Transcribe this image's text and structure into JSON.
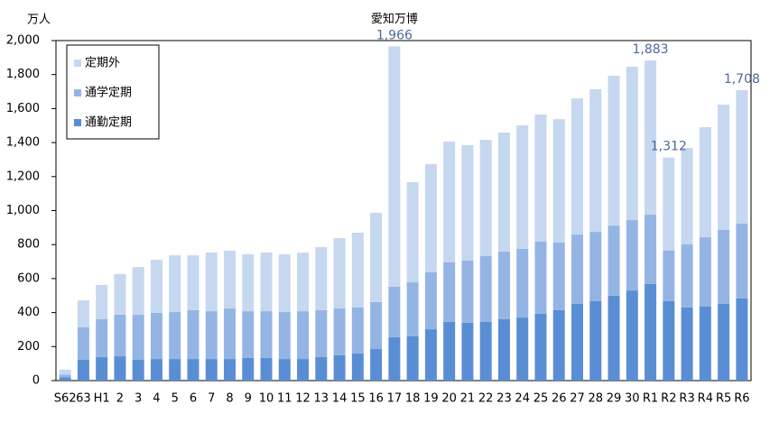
{
  "chart_data": {
    "type": "stacked_bar",
    "y_label": "万人",
    "categories": [
      "S62",
      "63",
      "H1",
      "2",
      "3",
      "4",
      "5",
      "6",
      "7",
      "8",
      "9",
      "10",
      "11",
      "12",
      "13",
      "14",
      "15",
      "16",
      "17",
      "18",
      "19",
      "20",
      "21",
      "22",
      "23",
      "24",
      "25",
      "26",
      "27",
      "28",
      "29",
      "30",
      "R1",
      "R2",
      "R3",
      "R4",
      "R5",
      "R6"
    ],
    "series": [
      {
        "name": "通勤定期",
        "color": "#5a8ed4",
        "values": [
          20,
          122,
          138,
          143,
          122,
          127,
          127,
          127,
          127,
          127,
          133,
          133,
          127,
          127,
          138,
          149,
          159,
          186,
          255,
          260,
          302,
          345,
          340,
          345,
          361,
          371,
          393,
          414,
          451,
          467,
          499,
          530,
          568,
          467,
          430,
          435,
          451,
          483
        ]
      },
      {
        "name": "通学定期",
        "color": "#94b5e4",
        "values": [
          15,
          191,
          223,
          244,
          265,
          271,
          276,
          287,
          281,
          297,
          275,
          275,
          276,
          281,
          276,
          275,
          271,
          276,
          297,
          318,
          335,
          350,
          366,
          387,
          398,
          404,
          424,
          398,
          408,
          408,
          413,
          414,
          408,
          297,
          371,
          408,
          435,
          440
        ]
      },
      {
        "name": "定期外",
        "color": "#c6d7f0",
        "values": [
          29,
          159,
          201,
          239,
          281,
          313,
          334,
          323,
          345,
          340,
          335,
          345,
          340,
          345,
          371,
          414,
          440,
          525,
          1414,
          589,
          636,
          711,
          679,
          684,
          700,
          726,
          748,
          726,
          801,
          839,
          881,
          902,
          907,
          548,
          568,
          648,
          737,
          785
        ]
      }
    ],
    "ylim": [
      0,
      2000
    ],
    "yticks": [
      0,
      200,
      400,
      600,
      800,
      {
        "value": 1000,
        "label": "1,000"
      },
      {
        "value": 1200,
        "label": "1,200"
      },
      {
        "value": 1400,
        "label": "1,400"
      },
      {
        "value": 1600,
        "label": "1,600"
      },
      {
        "value": 1800,
        "label": "1,800"
      },
      {
        "value": 2000,
        "label": "2,000"
      }
    ],
    "annotations": [
      {
        "category": "17",
        "note": "愛知万博",
        "text": "1,966",
        "value": 1966
      },
      {
        "category": "R1",
        "text": "1,883",
        "value": 1883
      },
      {
        "category": "R2",
        "text": "1,312",
        "value": 1312
      },
      {
        "category": "R6",
        "text": "1,708",
        "value": 1708
      }
    ],
    "legend": "upper left",
    "grid": false
  }
}
